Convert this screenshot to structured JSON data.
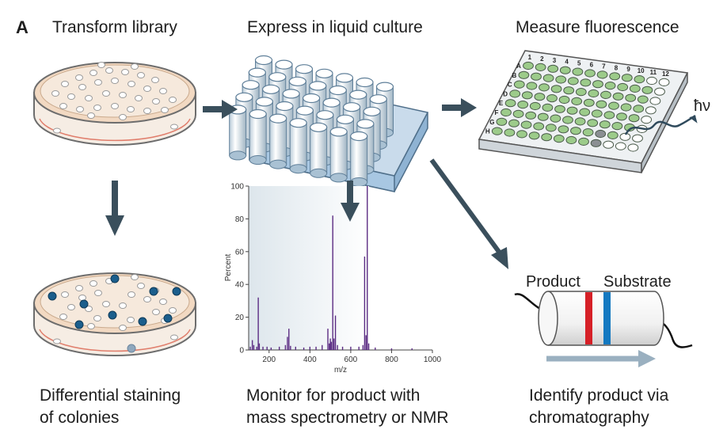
{
  "panel_letter": "A",
  "steps": {
    "transform": "Transform library",
    "express": "Express in liquid culture",
    "measure": "Measure fluorescence",
    "staining_line1": "Differential staining",
    "staining_line2": "of colonies",
    "monitor_line1": "Monitor for product with",
    "monitor_line2": "mass spectrometry or NMR",
    "identify_line1": "Identify product via",
    "identify_line2": "chromatography"
  },
  "plate": {
    "columns": [
      "1",
      "2",
      "3",
      "4",
      "5",
      "6",
      "7",
      "8",
      "9",
      "10",
      "11",
      "12"
    ],
    "rows": [
      "A",
      "B",
      "C",
      "D",
      "E",
      "F",
      "G",
      "H"
    ],
    "emission_label": "ħν",
    "colors": {
      "positive": "#9ccb8a",
      "empty": "#ffffff",
      "dark": "#8b8f93"
    }
  },
  "column": {
    "product_label": "Product",
    "substrate_label": "Substrate",
    "product_color": "#d62027",
    "substrate_color": "#1479c1"
  },
  "chart_data": {
    "type": "bar",
    "xlabel": "m/z",
    "ylabel": "Percent",
    "xlim": [
      100,
      1000
    ],
    "ylim": [
      0,
      100
    ],
    "xticks": [
      200,
      400,
      600,
      800,
      1000
    ],
    "yticks": [
      0,
      20,
      40,
      60,
      80,
      100
    ],
    "bar_color": "#5b2c83",
    "peaks": [
      {
        "x": 108,
        "y": 2
      },
      {
        "x": 118,
        "y": 6
      },
      {
        "x": 125,
        "y": 3
      },
      {
        "x": 140,
        "y": 2
      },
      {
        "x": 147,
        "y": 32
      },
      {
        "x": 152,
        "y": 4
      },
      {
        "x": 170,
        "y": 2
      },
      {
        "x": 190,
        "y": 2
      },
      {
        "x": 210,
        "y": 1.5
      },
      {
        "x": 250,
        "y": 2
      },
      {
        "x": 280,
        "y": 3
      },
      {
        "x": 290,
        "y": 8
      },
      {
        "x": 297,
        "y": 13
      },
      {
        "x": 305,
        "y": 2.5
      },
      {
        "x": 330,
        "y": 2
      },
      {
        "x": 370,
        "y": 1.5
      },
      {
        "x": 400,
        "y": 2
      },
      {
        "x": 430,
        "y": 2
      },
      {
        "x": 460,
        "y": 3
      },
      {
        "x": 488,
        "y": 13
      },
      {
        "x": 495,
        "y": 4
      },
      {
        "x": 500,
        "y": 7
      },
      {
        "x": 505,
        "y": 5
      },
      {
        "x": 512,
        "y": 82
      },
      {
        "x": 518,
        "y": 7
      },
      {
        "x": 525,
        "y": 21
      },
      {
        "x": 535,
        "y": 3
      },
      {
        "x": 560,
        "y": 2
      },
      {
        "x": 600,
        "y": 2
      },
      {
        "x": 640,
        "y": 2
      },
      {
        "x": 660,
        "y": 3
      },
      {
        "x": 668,
        "y": 57
      },
      {
        "x": 675,
        "y": 9
      },
      {
        "x": 681,
        "y": 100
      },
      {
        "x": 688,
        "y": 4
      },
      {
        "x": 720,
        "y": 1.5
      },
      {
        "x": 800,
        "y": 1
      },
      {
        "x": 900,
        "y": 1
      }
    ]
  }
}
